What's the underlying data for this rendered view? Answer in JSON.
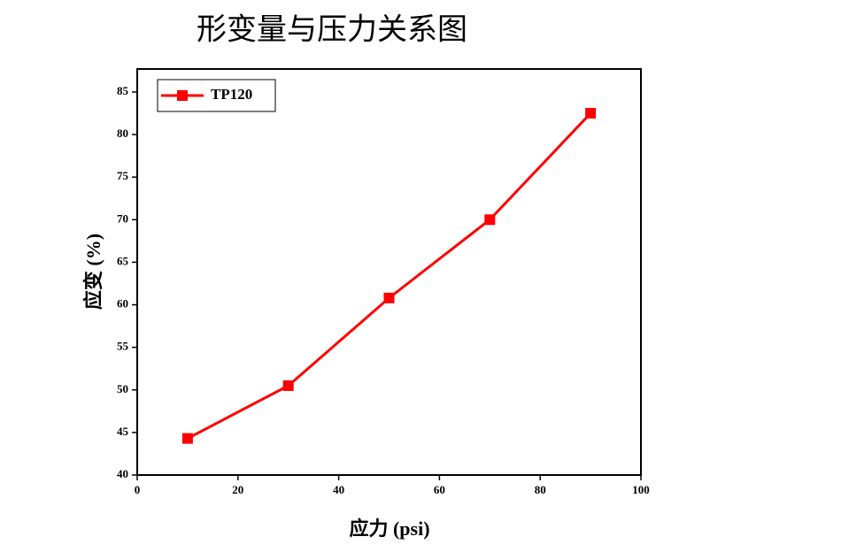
{
  "chart_data": {
    "type": "line",
    "title": "形变量与压力关系图",
    "x_label": "应力 (psi)",
    "y_label": "应变 (%)",
    "x": [
      10,
      30,
      50,
      70,
      90
    ],
    "series": [
      {
        "name": "TP120",
        "color": "#ff0000",
        "values": [
          44.3,
          50.5,
          60.8,
          70,
          82.5
        ]
      }
    ],
    "xlim": [
      0,
      100
    ],
    "xticks": [
      0,
      20,
      40,
      60,
      80,
      100
    ],
    "ylim": [
      40,
      87.7
    ],
    "yticks": [
      40,
      45,
      50,
      55,
      60,
      65,
      70,
      75,
      80,
      85
    ],
    "grid": false,
    "legend": "upper left",
    "marker": "square"
  }
}
